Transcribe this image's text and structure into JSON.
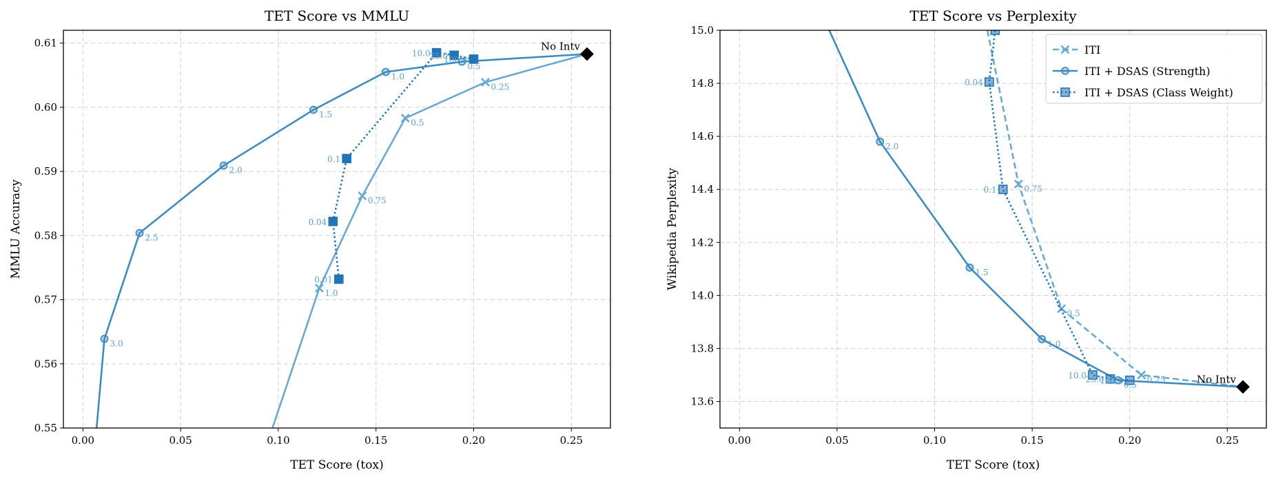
{
  "colors": {
    "iti": "#6aa8d4",
    "strength": "#3d8bc0",
    "classweight": "#2274b6",
    "nointv": "#000000",
    "label": "#5b9fcf",
    "grid": "#cfcfcf"
  },
  "chart_data": [
    {
      "type": "line",
      "title": "TET Score vs MMLU",
      "xlabel": "TET Score (tox)",
      "ylabel": "MMLU Accuracy",
      "xlim": [
        -0.01,
        0.27
      ],
      "ylim": [
        0.55,
        0.612
      ],
      "xticks": [
        0.0,
        0.05,
        0.1,
        0.15,
        0.2,
        0.25
      ],
      "xtick_labels": [
        "0.00",
        "0.05",
        "0.10",
        "0.15",
        "0.20",
        "0.25"
      ],
      "yticks": [
        0.55,
        0.56,
        0.57,
        0.58,
        0.59,
        0.6,
        0.61
      ],
      "ytick_labels": [
        "0.55",
        "0.56",
        "0.57",
        "0.58",
        "0.59",
        "0.60",
        "0.61"
      ],
      "grid": true,
      "legend": false,
      "series": [
        {
          "key": "iti",
          "marker": "x",
          "dash": "solid",
          "x": [
            0.097,
            0.121,
            0.143,
            0.165,
            0.206,
            0.258
          ],
          "y": [
            0.55,
            0.5718,
            0.5862,
            0.5983,
            0.6039,
            0.6083
          ],
          "labels": [
            "",
            "1.0",
            "0.75",
            "0.5",
            "0.25",
            ""
          ]
        },
        {
          "key": "strength",
          "marker": "circle",
          "dash": "solid",
          "x": [
            0.007,
            0.011,
            0.029,
            0.072,
            0.118,
            0.155,
            0.194,
            0.258
          ],
          "y": [
            0.55,
            0.5639,
            0.5804,
            0.5909,
            0.5996,
            0.6055,
            0.6071,
            0.6083
          ],
          "labels": [
            "",
            "3.0",
            "2.5",
            "2.0",
            "1.5",
            "1.0",
            "0.5",
            ""
          ]
        },
        {
          "key": "classweight",
          "marker": "square",
          "dash": "dotted",
          "x": [
            0.131,
            0.128,
            0.135,
            0.181,
            0.19,
            0.2
          ],
          "y": [
            0.5732,
            0.5822,
            0.592,
            0.6085,
            0.6081,
            0.6075
          ],
          "labels": [
            "0.01",
            "0.04",
            "0.1",
            "10.0",
            "25.0",
            "100.0"
          ]
        }
      ],
      "annotations": [
        {
          "text": "No Intv",
          "x": 0.258,
          "y": 0.6083
        }
      ]
    },
    {
      "type": "line",
      "title": "TET Score vs Perplexity",
      "xlabel": "TET Score (tox)",
      "ylabel": "Wikipedia Perplexity",
      "xlim": [
        -0.01,
        0.27
      ],
      "ylim": [
        13.5,
        15.0
      ],
      "xticks": [
        0.0,
        0.05,
        0.1,
        0.15,
        0.2,
        0.25
      ],
      "xtick_labels": [
        "0.00",
        "0.05",
        "0.10",
        "0.15",
        "0.20",
        "0.25"
      ],
      "yticks": [
        13.6,
        13.8,
        14.0,
        14.2,
        14.4,
        14.6,
        14.8,
        15.0
      ],
      "ytick_labels": [
        "13.6",
        "13.8",
        "14.0",
        "14.2",
        "14.4",
        "14.6",
        "14.8",
        "15.0"
      ],
      "grid": true,
      "legend": "top-right",
      "series": [
        {
          "key": "iti",
          "name": "ITI",
          "marker": "x",
          "dash": "dashed",
          "x": [
            0.127,
            0.143,
            0.165,
            0.206,
            0.258
          ],
          "y": [
            15.0,
            14.42,
            13.95,
            13.7,
            13.655
          ],
          "labels": [
            "",
            "0.75",
            "0.5",
            "0.25",
            ""
          ]
        },
        {
          "key": "strength",
          "name": "ITI + DSAS (Strength)",
          "marker": "circle",
          "dash": "solid",
          "x": [
            0.046,
            0.072,
            0.118,
            0.155,
            0.194,
            0.258
          ],
          "y": [
            15.0,
            14.58,
            14.105,
            13.835,
            13.68,
            13.655
          ],
          "labels": [
            "",
            "2.0",
            "1.5",
            "1.0",
            "0.5",
            ""
          ]
        },
        {
          "key": "classweight",
          "name": "ITI + DSAS (Class Weight)",
          "marker": "square",
          "dash": "dotted",
          "x": [
            0.131,
            0.128,
            0.135,
            0.181,
            0.19,
            0.2
          ],
          "y": [
            15.0,
            14.805,
            14.4,
            13.7,
            13.685,
            13.68
          ],
          "labels": [
            "",
            "0.04",
            "0.1",
            "10.0",
            "25.0",
            "100.0"
          ]
        }
      ],
      "annotations": [
        {
          "text": "No Intv",
          "x": 0.258,
          "y": 13.655
        }
      ]
    }
  ]
}
